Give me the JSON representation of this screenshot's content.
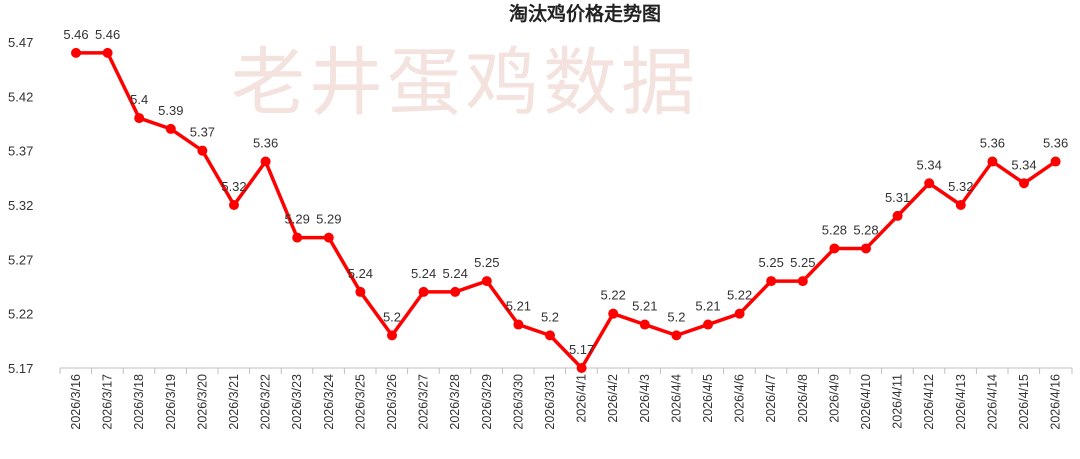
{
  "watermark": "老井蛋鸡数据",
  "chart_data": {
    "type": "line",
    "title": "淘汰鸡价格走势图",
    "xlabel": "",
    "ylabel": "",
    "ylim": [
      5.17,
      5.47
    ],
    "yticks": [
      "5.17",
      "5.22",
      "5.27",
      "5.32",
      "5.37",
      "5.42",
      "5.47"
    ],
    "grid": false,
    "legend": "none",
    "line_color": "#ff0000",
    "categories": [
      "2026/3/16",
      "2026/3/17",
      "2026/3/18",
      "2026/3/19",
      "2026/3/20",
      "2026/3/21",
      "2026/3/22",
      "2026/3/23",
      "2026/3/24",
      "2026/3/25",
      "2026/3/26",
      "2026/3/27",
      "2026/3/28",
      "2026/3/29",
      "2026/3/30",
      "2026/3/31",
      "2026/4/1",
      "2026/4/2",
      "2026/4/3",
      "2026/4/4",
      "2026/4/5",
      "2026/4/6",
      "2026/4/7",
      "2026/4/8",
      "2026/4/9",
      "2026/4/10",
      "2026/4/11",
      "2026/4/12",
      "2026/4/13",
      "2026/4/14",
      "2026/4/15",
      "2026/4/16"
    ],
    "values": [
      5.46,
      5.46,
      5.4,
      5.39,
      5.37,
      5.32,
      5.36,
      5.29,
      5.29,
      5.24,
      5.2,
      5.24,
      5.24,
      5.25,
      5.21,
      5.2,
      5.17,
      5.22,
      5.21,
      5.2,
      5.21,
      5.22,
      5.25,
      5.25,
      5.28,
      5.28,
      5.31,
      5.34,
      5.32,
      5.36,
      5.34,
      5.36
    ],
    "data_labels": [
      "5.46",
      "5.46",
      "5.4",
      "5.39",
      "5.37",
      "5.32",
      "5.36",
      "5.29",
      "5.29",
      "5.24",
      "5.2",
      "5.24",
      "5.24",
      "5.25",
      "5.21",
      "5.2",
      "5.17",
      "5.22",
      "5.21",
      "5.2",
      "5.21",
      "5.22",
      "5.25",
      "5.25",
      "5.28",
      "5.28",
      "5.31",
      "5.34",
      "5.32",
      "5.36",
      "5.34",
      "5.36"
    ]
  }
}
